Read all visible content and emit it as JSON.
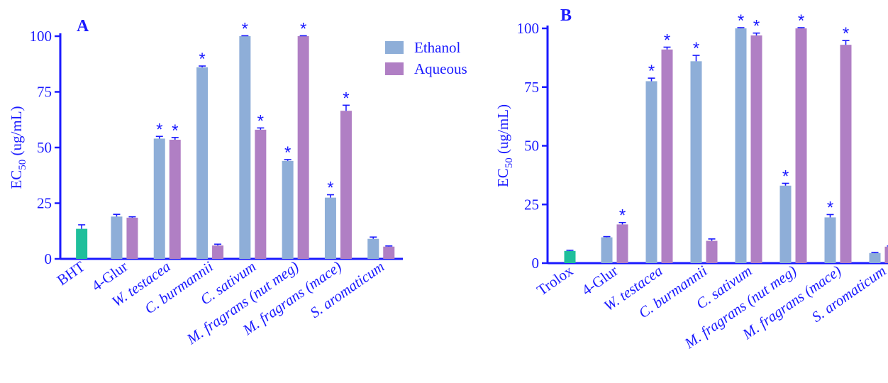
{
  "colors": {
    "ethanol": "#8eaed8",
    "aqueous": "#b07fc4",
    "standard": "#1fbf9b",
    "axis": "#1a1aff"
  },
  "legend": [
    {
      "name": "Ethanol",
      "color_key": "ethanol"
    },
    {
      "name": "Aqueous",
      "color_key": "aqueous"
    }
  ],
  "chart_data": [
    {
      "panel": "A",
      "type": "bar",
      "ylabel_main": "EC",
      "ylabel_sub": "50",
      "ylabel_unit": " (ug/mL)",
      "ylim": [
        0,
        100
      ],
      "yticks": [
        "0",
        "25",
        "50",
        "75",
        "100"
      ],
      "categories": [
        "BHT",
        "4-Glur",
        "W. testacea",
        "C. burmannii",
        "C. sativum",
        "M. fragrans (nut meg)",
        "M. fragrans (mace)",
        "S. aromaticum"
      ],
      "italic_categories": [
        false,
        false,
        true,
        true,
        true,
        true,
        true,
        true
      ],
      "standard": {
        "category": "BHT",
        "value": 13.5,
        "error": 1.8
      },
      "series": [
        {
          "name": "Ethanol",
          "values": [
            null,
            19.0,
            54.0,
            86.0,
            100.0,
            44.0,
            27.5,
            9.0
          ],
          "errors": [
            null,
            1.0,
            1.0,
            0.6,
            0.2,
            0.6,
            1.3,
            0.8
          ],
          "significant": [
            false,
            false,
            true,
            true,
            true,
            true,
            true,
            false
          ]
        },
        {
          "name": "Aqueous",
          "values": [
            null,
            18.5,
            53.5,
            6.0,
            58.0,
            100.0,
            66.5,
            5.5
          ],
          "errors": [
            null,
            0.4,
            1.0,
            0.6,
            0.8,
            0.2,
            2.5,
            0.3
          ],
          "significant": [
            false,
            false,
            true,
            false,
            true,
            true,
            true,
            false
          ]
        }
      ]
    },
    {
      "panel": "B",
      "type": "bar",
      "ylabel_main": "EC",
      "ylabel_sub": "50",
      "ylabel_unit": " (ug/mL)",
      "ylim": [
        0,
        100
      ],
      "yticks": [
        "0",
        "25",
        "50",
        "75",
        "100"
      ],
      "categories": [
        "Trolox",
        "4-Glur",
        "W. testacea",
        "C. burmannii",
        "C. sativum",
        "M. fragrans (nut meg)",
        "M. fragrans (mace)",
        "S. aromaticum"
      ],
      "italic_categories": [
        false,
        false,
        true,
        true,
        true,
        true,
        true,
        true
      ],
      "standard": {
        "category": "Trolox",
        "value": 5.2,
        "error": 0.3
      },
      "series": [
        {
          "name": "Ethanol",
          "values": [
            null,
            11.0,
            77.5,
            86.0,
            100.0,
            33.0,
            19.5,
            4.3
          ],
          "errors": [
            null,
            0.3,
            1.3,
            2.5,
            0.3,
            1.0,
            1.2,
            0.3
          ],
          "significant": [
            false,
            false,
            true,
            true,
            true,
            true,
            true,
            false
          ]
        },
        {
          "name": "Aqueous",
          "values": [
            null,
            16.5,
            91.0,
            9.5,
            97.0,
            100.0,
            93.0,
            7.0
          ],
          "errors": [
            null,
            0.8,
            1.0,
            0.8,
            1.0,
            0.3,
            1.8,
            0.3
          ],
          "significant": [
            false,
            true,
            true,
            false,
            true,
            true,
            true,
            false
          ]
        }
      ]
    }
  ]
}
